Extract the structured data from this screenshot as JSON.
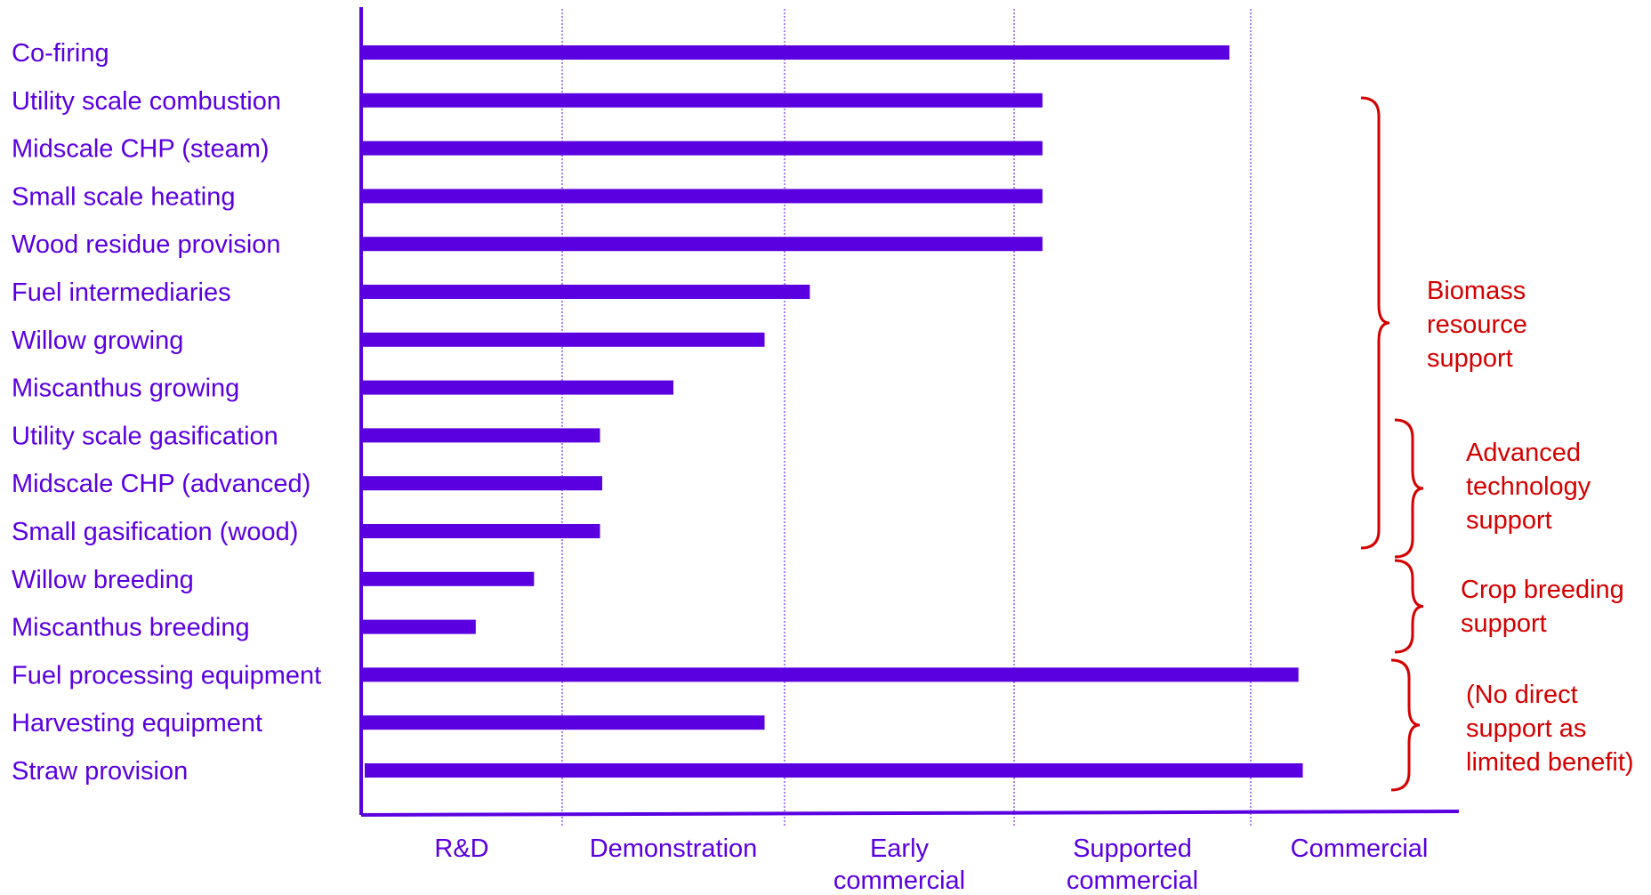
{
  "colors": {
    "bar": "#5a00e0",
    "axis": "#5a00e0",
    "text": "#5a00e0",
    "gridline": "#5a00e0",
    "annotation": "#d40000"
  },
  "chart_data": {
    "type": "bar",
    "orientation": "horizontal",
    "title": "",
    "xlabel": "",
    "ylabel": "",
    "x_stages": [
      "R&D",
      "Demonstration",
      "Early commercial",
      "Supported commercial",
      "Commercial"
    ],
    "x_stage_lines": [
      [
        "R&D"
      ],
      [
        "Demonstration"
      ],
      [
        "Early",
        "commercial"
      ],
      [
        "Supported",
        "commercial"
      ],
      [
        "Commercial"
      ]
    ],
    "xlim": [
      0,
      5
    ],
    "grid": "vertical dotted lines at stage boundaries",
    "categories": [
      "Co-firing",
      "Utility scale combustion",
      "Midscale CHP (steam)",
      "Small scale heating",
      "Wood residue provision",
      "Fuel intermediaries",
      "Willow growing",
      "Miscanthus growing",
      "Utility scale gasification",
      "Midscale CHP (advanced)",
      "Small gasification (wood)",
      "Willow breeding",
      "Miscanthus breeding",
      "Fuel processing equipment",
      "Harvesting equipment",
      "Straw provision"
    ],
    "values": [
      3.91,
      3.12,
      3.12,
      3.12,
      3.12,
      2.11,
      1.91,
      1.5,
      1.17,
      1.18,
      1.17,
      0.86,
      0.57,
      4.22,
      1.91,
      4.24
    ],
    "annotations": [
      {
        "lines": [
          "Biomass",
          "resource",
          "support"
        ],
        "from": "Utility scale combustion",
        "to": "Small gasification (wood)"
      },
      {
        "lines": [
          "Advanced",
          "technology",
          "support"
        ],
        "from": "Utility scale gasification",
        "to": "Small gasification (wood)"
      },
      {
        "lines": [
          "Crop breeding",
          "support"
        ],
        "from": "Willow breeding",
        "to": "Miscanthus breeding"
      },
      {
        "lines": [
          "(No direct",
          "support as",
          "limited benefit)"
        ],
        "from": "Fuel processing equipment",
        "to": "Straw provision"
      }
    ]
  }
}
